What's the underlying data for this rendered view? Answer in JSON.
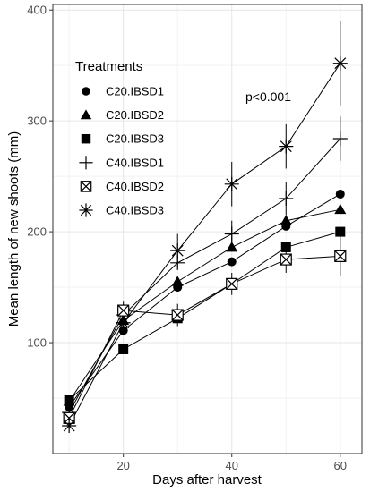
{
  "chart_data": {
    "type": "line",
    "xlabel": "Days after harvest",
    "ylabel": "Mean length of new shoots (mm)",
    "x": [
      10,
      20,
      30,
      40,
      50,
      60
    ],
    "xlim": [
      7,
      64
    ],
    "ylim": [
      0,
      405
    ],
    "x_ticks": [
      20,
      40,
      60
    ],
    "y_ticks": [
      100,
      200,
      300,
      400
    ],
    "grid": true,
    "legend_title": "Treatments",
    "legend_position": "top-left",
    "annotation": "p<0.001",
    "series": [
      {
        "name": "C20.IBSD1",
        "marker": "circle",
        "values": [
          42,
          111,
          150,
          173,
          205,
          234
        ],
        "err": [
          0,
          0,
          0,
          0,
          0,
          0
        ]
      },
      {
        "name": "C20.IBSD2",
        "marker": "triangle",
        "values": [
          47,
          120,
          155,
          186,
          210,
          220
        ],
        "err": [
          0,
          0,
          0,
          0,
          0,
          0
        ]
      },
      {
        "name": "C20.IBSD3",
        "marker": "square",
        "values": [
          48,
          94,
          122,
          153,
          186,
          200
        ],
        "err": [
          0,
          0,
          0,
          0,
          0,
          0
        ]
      },
      {
        "name": "C40.IBSD1",
        "marker": "plus",
        "values": [
          37,
          125,
          172,
          198,
          230,
          284
        ],
        "err": [
          0,
          10,
          0,
          12,
          15,
          20
        ]
      },
      {
        "name": "C40.IBSD2",
        "marker": "square-x",
        "values": [
          32,
          129,
          125,
          153,
          175,
          178
        ],
        "err": [
          0,
          8,
          10,
          10,
          12,
          18
        ]
      },
      {
        "name": "C40.IBSD3",
        "marker": "asterisk",
        "values": [
          25,
          118,
          183,
          243,
          277,
          352
        ],
        "err": [
          0,
          0,
          15,
          20,
          20,
          38
        ]
      }
    ]
  }
}
